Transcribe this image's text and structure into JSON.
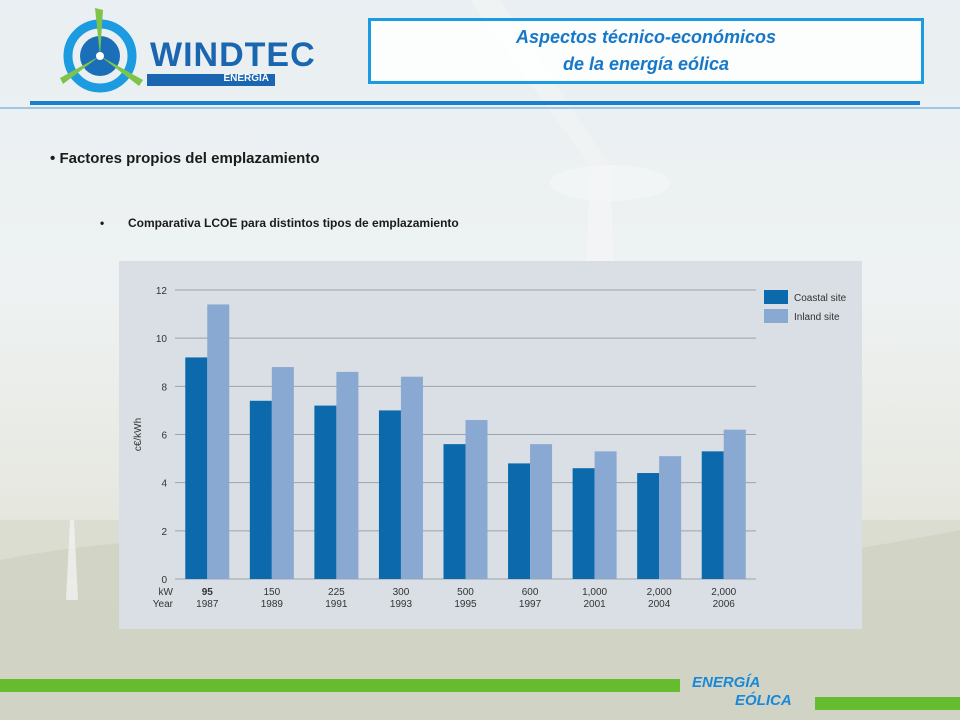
{
  "header": {
    "brand": "WINDTEC",
    "brand_sub": "ENERGÍA",
    "title_line1": "Aspectos técnico-económicos",
    "title_line2": "de la energía eólica"
  },
  "content": {
    "bullet1": "Factores propios del emplazamiento",
    "bullet2": "Comparativa  LCOE para distintos tipos de emplazamiento",
    "bullet2_marker": "•",
    "bullet1_marker": "•"
  },
  "footer": {
    "line1": "ENERGÍA",
    "line2": "EÓLICA"
  },
  "colors": {
    "accent": "#1a7fcf",
    "coastal": "#0b69ac",
    "inland": "#89a8d2",
    "green": "#66bb2e"
  },
  "chart_data": {
    "type": "bar",
    "ylabel": "c€/kWh",
    "ylim": [
      0,
      12
    ],
    "yticks": [
      "0",
      "2",
      "4",
      "6",
      "8",
      "10",
      "12"
    ],
    "row_labels": [
      "kW",
      "Year"
    ],
    "categories": [
      {
        "kw": "95",
        "year": "1987"
      },
      {
        "kw": "150",
        "year": "1989"
      },
      {
        "kw": "225",
        "year": "1991"
      },
      {
        "kw": "300",
        "year": "1993"
      },
      {
        "kw": "500",
        "year": "1995"
      },
      {
        "kw": "600",
        "year": "1997"
      },
      {
        "kw": "1,000",
        "year": "2001"
      },
      {
        "kw": "2,000",
        "year": "2004"
      },
      {
        "kw": "2,000",
        "year": "2006"
      }
    ],
    "series": [
      {
        "name": "Coastal site",
        "color": "#0b69ac",
        "values": [
          9.2,
          7.4,
          7.2,
          7.0,
          5.6,
          4.8,
          4.6,
          4.4,
          5.3
        ]
      },
      {
        "name": "Inland site",
        "color": "#89a8d2",
        "values": [
          11.4,
          8.8,
          8.6,
          8.4,
          6.6,
          5.6,
          5.3,
          5.1,
          6.2
        ]
      }
    ],
    "legend": "top-right",
    "grid": true
  }
}
